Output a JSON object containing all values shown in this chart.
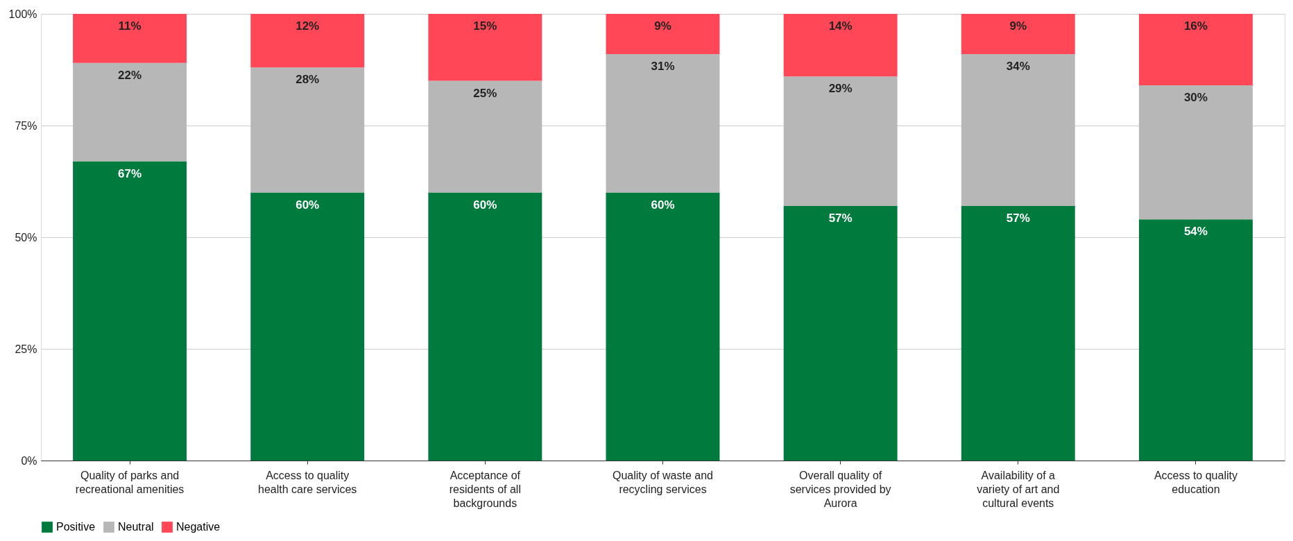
{
  "chart_data": {
    "type": "bar",
    "stacked": true,
    "categories": [
      "Quality of parks and recreational amenities",
      "Access to quality health care services",
      "Acceptance of residents of all backgrounds",
      "Quality of waste and recycling services",
      "Overall quality of services provided by Aurora",
      "Availability of a variety of art and cultural events",
      "Access to quality education"
    ],
    "series": [
      {
        "name": "Positive",
        "color": "#007a3d",
        "values": [
          67,
          60,
          60,
          60,
          57,
          57,
          54
        ],
        "value_labels": [
          "67%",
          "60%",
          "60%",
          "60%",
          "57%",
          "57%",
          "54%"
        ]
      },
      {
        "name": "Neutral",
        "color": "#b7b7b7",
        "values": [
          22,
          28,
          25,
          31,
          29,
          34,
          30
        ],
        "value_labels": [
          "22%",
          "28%",
          "25%",
          "31%",
          "29%",
          "34%",
          "30%"
        ]
      },
      {
        "name": "Negative",
        "color": "#ff4757",
        "values": [
          11,
          12,
          15,
          9,
          14,
          9,
          16
        ],
        "value_labels": [
          "11%",
          "12%",
          "15%",
          "9%",
          "14%",
          "9%",
          "16%"
        ]
      }
    ],
    "ylim": [
      0,
      100
    ],
    "yticks": [
      {
        "value": 0,
        "label": "0%"
      },
      {
        "value": 25,
        "label": "25%"
      },
      {
        "value": 50,
        "label": "50%"
      },
      {
        "value": 75,
        "label": "75%"
      },
      {
        "value": 100,
        "label": "100%"
      }
    ],
    "grid": "y",
    "legend": "bottom"
  }
}
